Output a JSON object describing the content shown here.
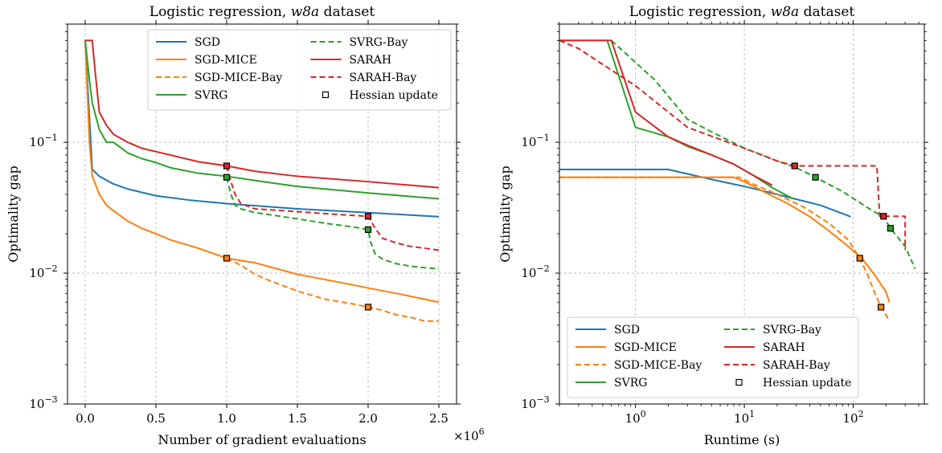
{
  "colors": {
    "blue": "#1f77b4",
    "orange": "#ff7f0e",
    "green": "#2ca02c",
    "red": "#d62728"
  },
  "chart_data": [
    {
      "type": "line",
      "title_prefix": "Logistic regression, ",
      "title_em": "w8a",
      "title_suffix": " dataset",
      "xlabel": "Number of gradient evaluations",
      "ylabel": "Optimality gap",
      "x_multiplier_label": "×10",
      "x_multiplier_exp": "6",
      "xscale": "linear",
      "yscale": "log",
      "xlim": [
        -0.125,
        2.625
      ],
      "ylim": [
        0.001,
        0.8
      ],
      "xticks": [
        0.0,
        0.5,
        1.0,
        1.5,
        2.0,
        2.5
      ],
      "xtick_labels": [
        "0.0",
        "0.5",
        "1.0",
        "1.5",
        "2.0",
        "2.5"
      ],
      "yticks": [
        0.001,
        0.01,
        0.1
      ],
      "ytick_labels": [
        "10",
        "10",
        "10"
      ],
      "ytick_exps": [
        "−3",
        "−2",
        "−1"
      ],
      "grid": true,
      "legend_placement": "top-right",
      "series": [
        {
          "name": "SGD",
          "color": "blue",
          "dash": "solid",
          "x": [
            0.0,
            0.05,
            0.1,
            0.2,
            0.3,
            0.5,
            0.75,
            1.0,
            1.5,
            2.0,
            2.5
          ],
          "y": [
            0.6,
            0.062,
            0.055,
            0.048,
            0.044,
            0.039,
            0.036,
            0.034,
            0.031,
            0.029,
            0.027
          ]
        },
        {
          "name": "SGD-MICE",
          "color": "orange",
          "dash": "solid",
          "x": [
            0.0,
            0.03,
            0.05,
            0.1,
            0.15,
            0.2,
            0.3,
            0.4,
            0.5,
            0.6,
            0.8,
            1.0,
            1.2,
            1.5,
            1.8,
            2.0,
            2.2,
            2.5
          ],
          "y": [
            0.6,
            0.1,
            0.055,
            0.04,
            0.033,
            0.03,
            0.025,
            0.022,
            0.02,
            0.018,
            0.0155,
            0.013,
            0.012,
            0.0098,
            0.0085,
            0.0077,
            0.007,
            0.006
          ]
        },
        {
          "name": "SGD-MICE-Bay",
          "color": "orange",
          "dash": "dashed",
          "x": [
            1.0,
            1.1,
            1.2,
            1.3,
            1.5,
            1.7,
            1.9,
            2.0,
            2.1,
            2.2,
            2.3,
            2.4,
            2.5
          ],
          "y": [
            0.013,
            0.0115,
            0.0098,
            0.0088,
            0.0073,
            0.0063,
            0.0058,
            0.0055,
            0.0052,
            0.0048,
            0.0046,
            0.0043,
            0.0043
          ]
        },
        {
          "name": "SVRG",
          "color": "green",
          "dash": "solid",
          "x": [
            0.0,
            0.03,
            0.05,
            0.1,
            0.15,
            0.2,
            0.3,
            0.4,
            0.5,
            0.6,
            0.8,
            1.0,
            1.2,
            1.5,
            2.0,
            2.5
          ],
          "y": [
            0.6,
            0.3,
            0.2,
            0.125,
            0.1,
            0.1,
            0.083,
            0.075,
            0.07,
            0.064,
            0.058,
            0.055,
            0.051,
            0.046,
            0.041,
            0.037
          ]
        },
        {
          "name": "SVRG-Bay",
          "color": "green",
          "dash": "dashed",
          "x": [
            1.0,
            1.03,
            1.06,
            1.1,
            1.2,
            1.3,
            1.5,
            1.7,
            1.9,
            2.0,
            2.02,
            2.05,
            2.1,
            2.2,
            2.3,
            2.4,
            2.5
          ],
          "y": [
            0.054,
            0.04,
            0.033,
            0.031,
            0.029,
            0.028,
            0.026,
            0.024,
            0.0225,
            0.0215,
            0.017,
            0.014,
            0.0128,
            0.0118,
            0.0113,
            0.011,
            0.0108
          ]
        },
        {
          "name": "SARAH",
          "color": "red",
          "dash": "solid",
          "x": [
            0.0,
            0.05,
            0.07,
            0.1,
            0.15,
            0.2,
            0.3,
            0.4,
            0.6,
            0.8,
            1.0,
            1.2,
            1.5,
            2.0,
            2.5
          ],
          "y": [
            0.6,
            0.6,
            0.35,
            0.17,
            0.135,
            0.115,
            0.1,
            0.09,
            0.08,
            0.071,
            0.066,
            0.06,
            0.055,
            0.05,
            0.045
          ]
        },
        {
          "name": "SARAH-Bay",
          "color": "red",
          "dash": "dashed",
          "x": [
            1.0,
            1.03,
            1.06,
            1.1,
            1.2,
            1.4,
            1.6,
            1.8,
            2.0,
            2.05,
            2.1,
            2.2,
            2.3,
            2.4,
            2.5
          ],
          "y": [
            0.066,
            0.05,
            0.04,
            0.034,
            0.031,
            0.03,
            0.029,
            0.028,
            0.0272,
            0.022,
            0.0185,
            0.017,
            0.016,
            0.0155,
            0.015
          ]
        }
      ],
      "hessian_updates": [
        {
          "x": 1.0,
          "y": 0.066,
          "color": "red"
        },
        {
          "x": 1.0,
          "y": 0.054,
          "color": "green"
        },
        {
          "x": 1.0,
          "y": 0.013,
          "color": "orange"
        },
        {
          "x": 2.0,
          "y": 0.0272,
          "color": "red"
        },
        {
          "x": 2.0,
          "y": 0.0215,
          "color": "green"
        },
        {
          "x": 2.0,
          "y": 0.0055,
          "color": "orange"
        }
      ],
      "legend_labels": [
        "SGD",
        "SGD-MICE",
        "SGD-MICE-Bay",
        "SVRG",
        "SVRG-Bay",
        "SARAH",
        "SARAH-Bay",
        "Hessian update"
      ]
    },
    {
      "type": "line",
      "title_prefix": "Logistic regression, ",
      "title_em": "w8a",
      "title_suffix": " dataset",
      "xlabel": "Runtime (s)",
      "ylabel": "Optimality gap",
      "xscale": "log",
      "yscale": "log",
      "xlim": [
        0.2,
        450
      ],
      "ylim": [
        0.001,
        0.8
      ],
      "xticks": [
        1,
        10,
        100
      ],
      "xtick_labels": [
        "10",
        "10",
        "10"
      ],
      "xtick_exps": [
        "0",
        "1",
        "2"
      ],
      "yticks": [
        0.001,
        0.01,
        0.1
      ],
      "ytick_labels": [
        "10",
        "10",
        "10"
      ],
      "ytick_exps": [
        "−3",
        "−2",
        "−1"
      ],
      "grid": true,
      "legend_placement": "bottom-left",
      "series": [
        {
          "name": "SGD",
          "color": "blue",
          "dash": "solid",
          "x": [
            0.2,
            2.0,
            5.0,
            10.0,
            20.0,
            50.0,
            95.0
          ],
          "y": [
            0.062,
            0.062,
            0.052,
            0.046,
            0.04,
            0.033,
            0.027
          ]
        },
        {
          "name": "SGD-MICE",
          "color": "orange",
          "dash": "solid",
          "x": [
            0.2,
            8.0,
            10.0,
            15.0,
            25.0,
            40.0,
            60.0,
            90.0,
            120.0,
            160.0,
            200.0,
            215.0
          ],
          "y": [
            0.054,
            0.054,
            0.05,
            0.042,
            0.034,
            0.027,
            0.021,
            0.016,
            0.013,
            0.0095,
            0.0072,
            0.006
          ]
        },
        {
          "name": "SGD-MICE-Bay",
          "color": "orange",
          "dash": "dashed",
          "x": [
            0.2,
            9.0,
            12.0,
            20.0,
            35.0,
            60.0,
            90.0,
            115.0,
            135.0,
            155.0,
            180.0,
            200.0,
            215.0
          ],
          "y": [
            0.054,
            0.054,
            0.048,
            0.04,
            0.032,
            0.024,
            0.018,
            0.013,
            0.0098,
            0.0073,
            0.0055,
            0.0048,
            0.0043
          ]
        },
        {
          "name": "SVRG",
          "color": "green",
          "dash": "solid",
          "x": [
            0.2,
            0.55,
            1.0,
            2.0,
            3.0,
            5.0,
            8.0,
            12.0,
            18.0,
            28.0
          ],
          "y": [
            0.6,
            0.6,
            0.13,
            0.11,
            0.093,
            0.08,
            0.068,
            0.056,
            0.045,
            0.037
          ]
        },
        {
          "name": "SVRG-Bay",
          "color": "green",
          "dash": "dashed",
          "x": [
            0.6,
            1.5,
            3.0,
            5.0,
            10.0,
            20.0,
            30.0,
            45.0,
            80.0,
            150.0,
            190.0,
            220.0,
            300.0,
            370.0
          ],
          "y": [
            0.6,
            0.3,
            0.15,
            0.12,
            0.09,
            0.072,
            0.064,
            0.054,
            0.042,
            0.03,
            0.027,
            0.022,
            0.016,
            0.0108
          ]
        },
        {
          "name": "SARAH",
          "color": "red",
          "dash": "solid",
          "x": [
            0.2,
            0.6,
            1.0,
            2.0,
            3.0,
            5.0,
            8.0,
            12.0,
            18.0
          ],
          "y": [
            0.6,
            0.6,
            0.17,
            0.11,
            0.095,
            0.08,
            0.068,
            0.056,
            0.047
          ]
        },
        {
          "name": "SARAH-Bay",
          "color": "red",
          "dash": "dashed",
          "x": [
            0.2,
            0.3,
            1.0,
            3.0,
            10.0,
            20.0,
            29.0,
            60.0,
            100.0,
            165.0,
            175.0,
            190.0,
            300.0,
            300.0
          ],
          "y": [
            0.6,
            0.52,
            0.27,
            0.13,
            0.09,
            0.072,
            0.066,
            0.066,
            0.066,
            0.066,
            0.0272,
            0.0272,
            0.0272,
            0.015
          ]
        }
      ],
      "hessian_updates": [
        {
          "x": 29.0,
          "y": 0.066,
          "color": "red"
        },
        {
          "x": 45.0,
          "y": 0.054,
          "color": "green"
        },
        {
          "x": 115.0,
          "y": 0.013,
          "color": "orange"
        },
        {
          "x": 190.0,
          "y": 0.0272,
          "color": "red"
        },
        {
          "x": 220.0,
          "y": 0.022,
          "color": "green"
        },
        {
          "x": 180.0,
          "y": 0.0055,
          "color": "orange"
        }
      ],
      "legend_labels": [
        "SGD",
        "SGD-MICE",
        "SGD-MICE-Bay",
        "SVRG",
        "SVRG-Bay",
        "SARAH",
        "SARAH-Bay",
        "Hessian update"
      ]
    }
  ]
}
